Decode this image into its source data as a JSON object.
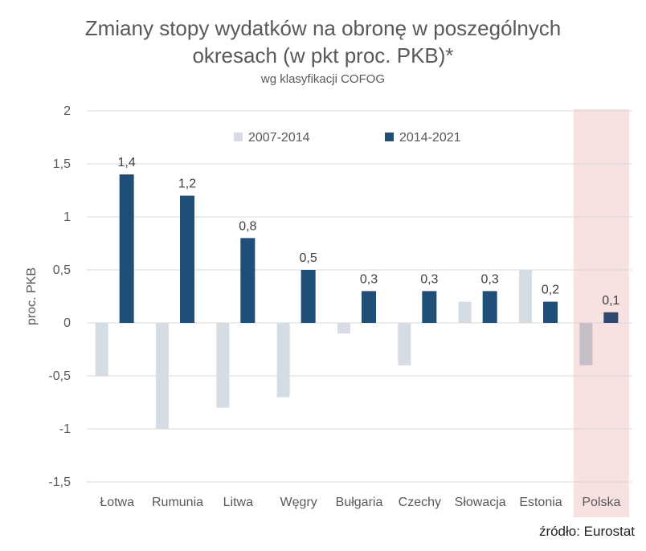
{
  "title_line1": "Zmiany stopy wydatków na obronę w poszególnych",
  "title_line2": "okresach  (w pkt proc. PKB)*",
  "subtitle": "wg klasyfikacji COFOG",
  "source": "źródło: Eurostat",
  "chart_data": {
    "type": "bar",
    "title": "Zmiany stopy wydatków na obronę w poszególnych okresach  (w pkt proc. PKB)*",
    "subtitle": "wg klasyfikacji COFOG",
    "ylabel": "proc. PKB",
    "xlabel": "",
    "ylim": [
      -1.5,
      2
    ],
    "yticks": [
      2,
      1.5,
      1,
      0.5,
      0,
      -0.5,
      -1,
      -1.5
    ],
    "ytick_labels": [
      "2",
      "1,5",
      "1",
      "0,5",
      "0",
      "-0,5",
      "-1",
      "-1,5"
    ],
    "grid": true,
    "legend_position": "top",
    "highlight_category": "Polska",
    "categories": [
      "Łotwa",
      "Rumunia",
      "Litwa",
      "Węgry",
      "Bułgaria",
      "Czechy",
      "Słowacja",
      "Estonia",
      "Polska"
    ],
    "series": [
      {
        "name": "2007-2014",
        "color": "#d6dce4",
        "values": [
          -0.5,
          -1.0,
          -0.8,
          -0.7,
          -0.1,
          -0.4,
          0.2,
          0.5,
          -0.4
        ],
        "labels": []
      },
      {
        "name": "2014-2021",
        "color": "#1f4e79",
        "values": [
          1.4,
          1.2,
          0.8,
          0.5,
          0.3,
          0.3,
          0.3,
          0.2,
          0.1
        ],
        "labels": [
          "1,4",
          "1,2",
          "0,8",
          "0,5",
          "0,3",
          "0,3",
          "0,3",
          "0,2",
          "0,1"
        ]
      }
    ],
    "colors": {
      "highlight_band": "#f8e1e1",
      "grid": "#d9d9d9",
      "bar_2007_2014_in_highlight": "#c5bfc9",
      "bar_2014_2021_in_highlight": "#2e4770"
    }
  }
}
